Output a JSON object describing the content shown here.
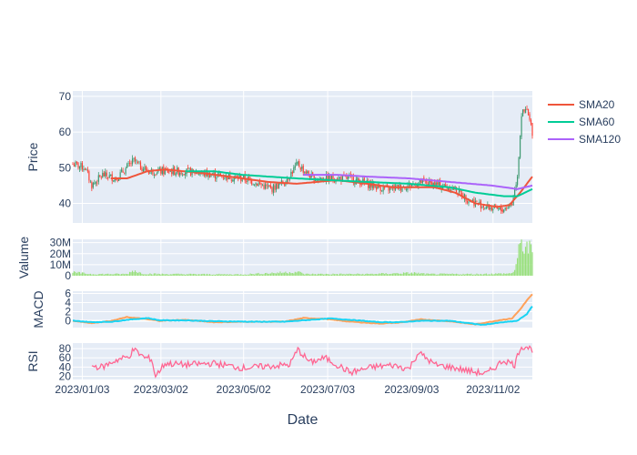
{
  "chart_data": {
    "type": "line",
    "x_title": "Date",
    "x_range": [
      "2022-12-27",
      "2023-12-01"
    ],
    "x_ticks": [
      "2023/01/03",
      "2023/03/02",
      "2023/05/02",
      "2023/07/03",
      "2023/09/03",
      "2023/11/02"
    ],
    "x_tick_dates": [
      "2023-01-03",
      "2023-03-02",
      "2023-05-02",
      "2023-07-03",
      "2023-09-03",
      "2023-11-02"
    ],
    "panels": [
      {
        "id": "price",
        "ylabel": "Price",
        "ylim": [
          34.5,
          71.5
        ],
        "yticks": [
          40,
          50,
          60,
          70
        ],
        "candle_colors": {
          "up": "#3D9970",
          "down": "#FF4136"
        },
        "anchor_dates": [
          "2022-12-27",
          "2023-01-05",
          "2023-01-10",
          "2023-01-18",
          "2023-01-28",
          "2023-02-10",
          "2023-02-16",
          "2023-02-22",
          "2023-03-05",
          "2023-03-20",
          "2023-04-10",
          "2023-05-01",
          "2023-05-10",
          "2023-05-22",
          "2023-06-01",
          "2023-06-11",
          "2023-06-16",
          "2023-06-22",
          "2023-07-05",
          "2023-07-20",
          "2023-08-05",
          "2023-08-15",
          "2023-09-01",
          "2023-09-10",
          "2023-09-25",
          "2023-10-05",
          "2023-10-15",
          "2023-10-28",
          "2023-11-08",
          "2023-11-16",
          "2023-11-20",
          "2023-11-23",
          "2023-11-27",
          "2023-12-01"
        ],
        "anchor_close": [
          51,
          50,
          45,
          48,
          47,
          52,
          50,
          49,
          49,
          49,
          48,
          47,
          46,
          44,
          46,
          51,
          49,
          47,
          47,
          47,
          45,
          44,
          45,
          46,
          45,
          44,
          41,
          39,
          38,
          40,
          48,
          65,
          66,
          60
        ],
        "series": [
          {
            "name": "SMA20",
            "color": "#EF553B",
            "dates": [
              "2023-01-24",
              "2023-02-05",
              "2023-02-20",
              "2023-03-05",
              "2023-04-01",
              "2023-05-01",
              "2023-05-20",
              "2023-06-10",
              "2023-06-25",
              "2023-07-10",
              "2023-08-01",
              "2023-08-20",
              "2023-09-05",
              "2023-09-20",
              "2023-10-05",
              "2023-10-20",
              "2023-11-05",
              "2023-11-14",
              "2023-11-22",
              "2023-12-01"
            ],
            "values": [
              47,
              47,
              49,
              49.5,
              48.5,
              47,
              46,
              45.5,
              46,
              46.5,
              45.5,
              44.5,
              44.5,
              44.5,
              43,
              40,
              39,
              39.5,
              43,
              47.5
            ]
          },
          {
            "name": "SMA60",
            "color": "#00CC96",
            "dates": [
              "2023-03-20",
              "2023-04-10",
              "2023-05-01",
              "2023-05-20",
              "2023-06-10",
              "2023-07-05",
              "2023-08-01",
              "2023-09-01",
              "2023-10-01",
              "2023-10-20",
              "2023-11-10",
              "2023-11-20",
              "2023-12-01"
            ],
            "values": [
              49,
              49,
              48,
              47.5,
              47,
              46.5,
              46,
              45.5,
              44.5,
              43,
              42,
              42,
              44
            ]
          },
          {
            "name": "SMA120",
            "color": "#AB63FA",
            "dates": [
              "2023-06-15",
              "2023-07-10",
              "2023-08-01",
              "2023-09-01",
              "2023-10-01",
              "2023-11-01",
              "2023-11-20",
              "2023-12-01"
            ],
            "values": [
              48,
              48,
              47.5,
              47,
              46,
              45,
              44,
              45
            ]
          }
        ]
      },
      {
        "id": "volume",
        "ylabel": "Valume",
        "ylim": [
          0,
          33000000
        ],
        "yticks": [
          0,
          10000000,
          20000000,
          30000000
        ],
        "ytick_labels": [
          "0",
          "10M",
          "20M",
          "30M"
        ],
        "bar_color": "#98E07A",
        "anchor_dates": [
          "2022-12-27",
          "2023-01-10",
          "2023-02-05",
          "2023-02-10",
          "2023-02-16",
          "2023-03-01",
          "2023-05-01",
          "2023-06-11",
          "2023-06-16",
          "2023-08-01",
          "2023-09-05",
          "2023-09-15",
          "2023-10-20",
          "2023-11-15",
          "2023-11-18",
          "2023-11-22",
          "2023-11-25",
          "2023-12-01"
        ],
        "anchor_values": [
          3000000,
          1500000,
          1500000,
          5000000,
          2000000,
          1500000,
          1200000,
          3500000,
          1500000,
          1500000,
          2500000,
          1500000,
          1500000,
          2000000,
          5000000,
          26000000,
          29000000,
          20000000
        ]
      },
      {
        "id": "macd",
        "ylabel": "MACD",
        "ylim": [
          -1.5,
          6.5
        ],
        "yticks": [
          0,
          2,
          4,
          6
        ],
        "series": [
          {
            "name": "MACD",
            "color": "#FFA15A",
            "dates": [
              "2022-12-27",
              "2023-01-10",
              "2023-01-25",
              "2023-02-05",
              "2023-02-15",
              "2023-03-01",
              "2023-03-20",
              "2023-04-10",
              "2023-05-10",
              "2023-06-01",
              "2023-06-15",
              "2023-07-01",
              "2023-07-20",
              "2023-08-10",
              "2023-08-25",
              "2023-09-10",
              "2023-10-01",
              "2023-10-20",
              "2023-11-08",
              "2023-11-16",
              "2023-11-22",
              "2023-11-27",
              "2023-12-01"
            ],
            "values": [
              0,
              -0.5,
              0,
              0.8,
              0.5,
              0,
              0.2,
              -0.3,
              -0.2,
              -0.2,
              0.6,
              0.4,
              -0.2,
              -0.6,
              -0.4,
              0.3,
              -0.1,
              -0.8,
              0.2,
              0.5,
              2.5,
              4.5,
              5.8
            ]
          },
          {
            "name": "Signal",
            "color": "#19D3F3",
            "dates": [
              "2022-12-27",
              "2023-01-10",
              "2023-01-25",
              "2023-02-05",
              "2023-02-20",
              "2023-03-01",
              "2023-03-20",
              "2023-04-10",
              "2023-05-10",
              "2023-06-01",
              "2023-06-20",
              "2023-07-05",
              "2023-07-20",
              "2023-08-10",
              "2023-08-25",
              "2023-09-10",
              "2023-10-01",
              "2023-10-25",
              "2023-11-10",
              "2023-11-20",
              "2023-11-27",
              "2023-12-01"
            ],
            "values": [
              0,
              -0.3,
              -0.2,
              0.2,
              0.6,
              0.1,
              0.1,
              -0.1,
              -0.2,
              -0.2,
              0.2,
              0.5,
              0.2,
              -0.3,
              -0.3,
              0,
              0,
              -0.9,
              -0.3,
              0,
              1.5,
              3.2
            ]
          }
        ]
      },
      {
        "id": "rsi",
        "ylabel": "RSI",
        "ylim": [
          13,
          92
        ],
        "yticks": [
          20,
          40,
          60,
          80
        ],
        "series": [
          {
            "name": "RSI",
            "color": "#FF6692",
            "dates": [
              "2023-01-10",
              "2023-01-18",
              "2023-01-28",
              "2023-02-06",
              "2023-02-10",
              "2023-02-18",
              "2023-02-23",
              "2023-02-26",
              "2023-03-05",
              "2023-03-20",
              "2023-04-10",
              "2023-05-01",
              "2023-05-22",
              "2023-06-05",
              "2023-06-11",
              "2023-06-20",
              "2023-07-01",
              "2023-07-08",
              "2023-07-20",
              "2023-08-05",
              "2023-08-20",
              "2023-09-01",
              "2023-09-08",
              "2023-09-20",
              "2023-10-05",
              "2023-10-18",
              "2023-10-28",
              "2023-11-10",
              "2023-11-18",
              "2023-11-22",
              "2023-11-26",
              "2023-12-01"
            ],
            "values": [
              42,
              40,
              55,
              62,
              78,
              60,
              58,
              20,
              48,
              45,
              48,
              38,
              42,
              45,
              78,
              50,
              60,
              48,
              28,
              40,
              44,
              36,
              72,
              45,
              38,
              30,
              25,
              55,
              45,
              82,
              85,
              78
            ]
          }
        ]
      }
    ],
    "legend": {
      "placement": "right",
      "entries": [
        {
          "name": "SMA20",
          "color": "#EF553B"
        },
        {
          "name": "SMA60",
          "color": "#00CC96"
        },
        {
          "name": "SMA120",
          "color": "#AB63FA"
        }
      ]
    }
  }
}
